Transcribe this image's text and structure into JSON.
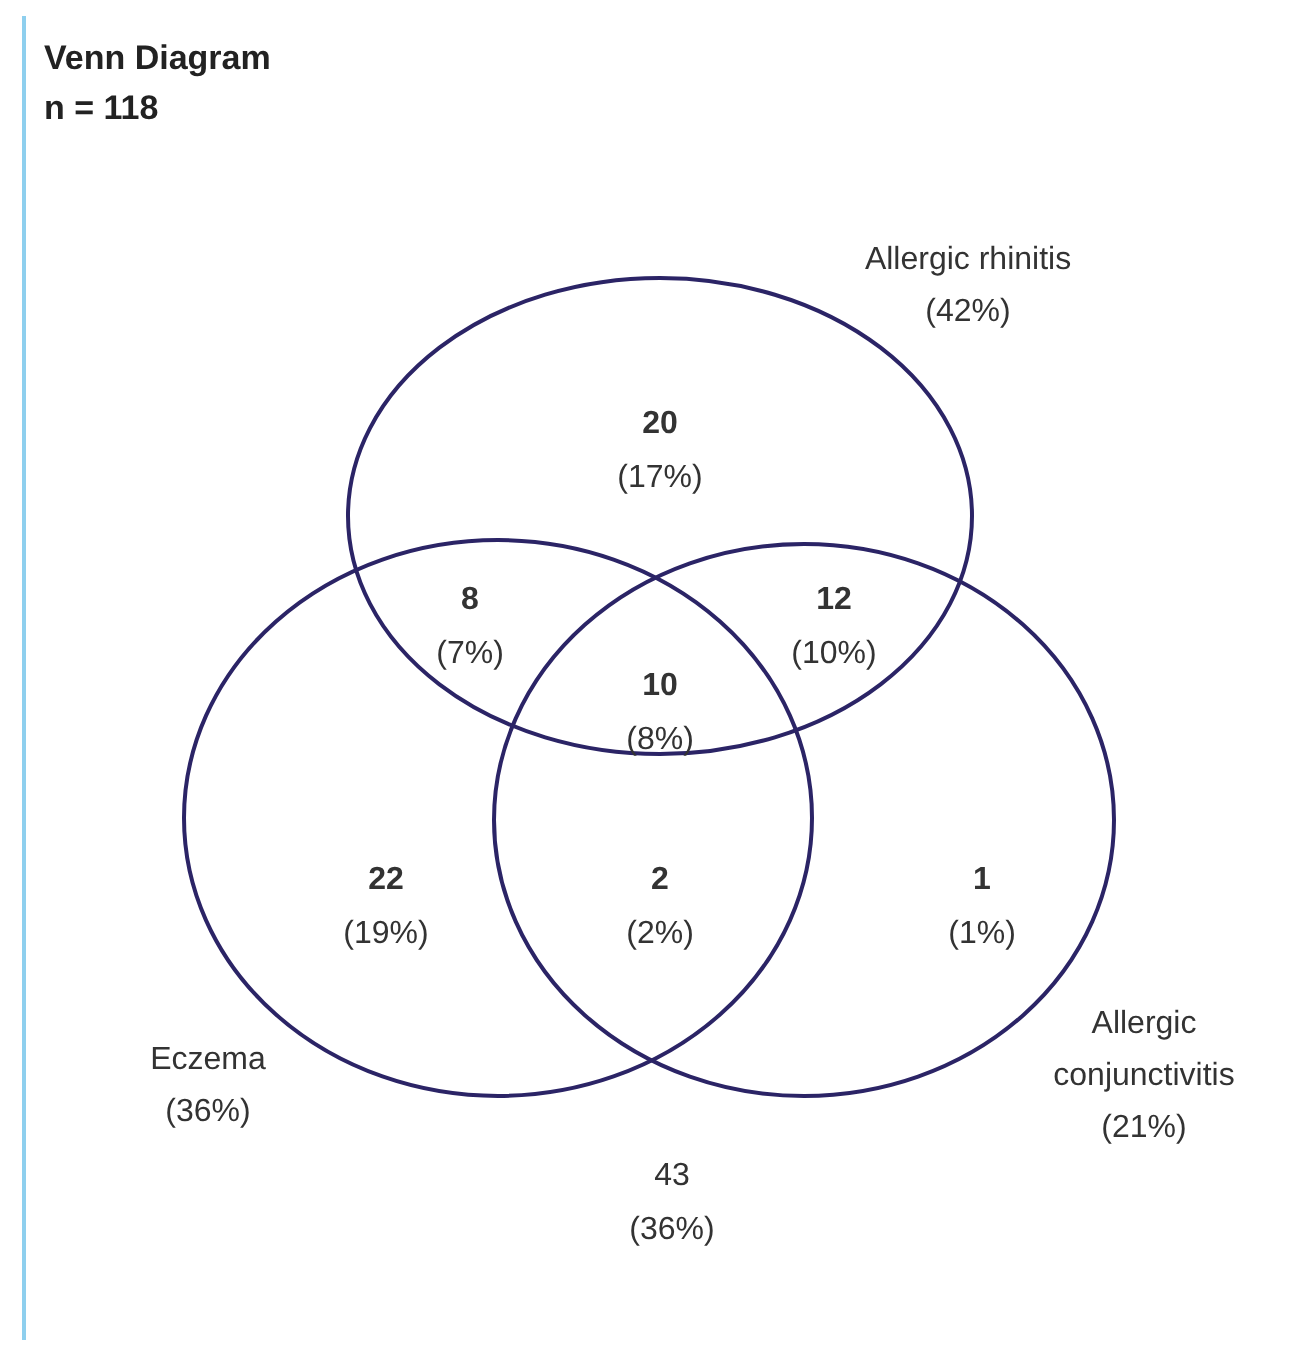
{
  "chart_data": {
    "type": "other",
    "title": "Venn Diagram",
    "subtitle": "n = 118",
    "color": "#2b2466",
    "categories": [
      null,
      null,
      null,
      null,
      null,
      null,
      null,
      null
    ],
    "values": [
      20,
      8,
      12,
      10,
      22,
      2,
      1,
      43
    ],
    "data_labels": true,
    "annotations": [
      "Allergic rhinitis",
      "(42%)",
      "Eczema",
      "(36%)",
      "Allergic conjunctivitis",
      "(21%)",
      "(17%)",
      "(7%)",
      "(10%)",
      "(8%)",
      "(19%)",
      "(2%)",
      "(1%)",
      "(36%)"
    ]
  }
}
